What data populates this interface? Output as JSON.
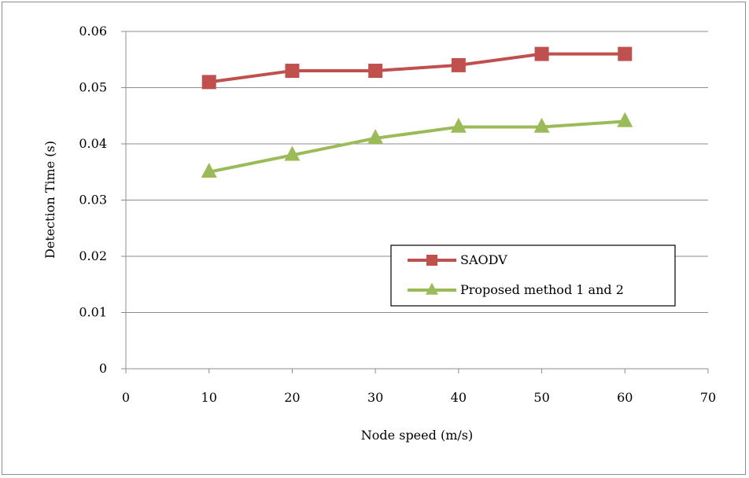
{
  "chart_data": {
    "type": "line",
    "xlabel": "Node speed (m/s)",
    "ylabel": "Detection Time (s)",
    "xlim": [
      0,
      70
    ],
    "ylim": [
      0,
      0.06
    ],
    "x_ticks": [
      "0",
      "10",
      "20",
      "30",
      "40",
      "50",
      "60",
      "70"
    ],
    "y_ticks": [
      "0",
      "0.01",
      "0.02",
      "0.03",
      "0.04",
      "0.05",
      "0.06"
    ],
    "grid": "horizontal",
    "legend_position": "right",
    "x": [
      10,
      20,
      30,
      40,
      50,
      60
    ],
    "series": [
      {
        "name": "SAODV",
        "values": [
          0.051,
          0.053,
          0.053,
          0.054,
          0.056,
          0.056
        ],
        "color": "#c0504d",
        "marker": "square"
      },
      {
        "name": "Proposed method 1 and 2",
        "values": [
          0.035,
          0.038,
          0.041,
          0.043,
          0.043,
          0.044
        ],
        "color": "#9bbb59",
        "marker": "triangle"
      }
    ]
  }
}
